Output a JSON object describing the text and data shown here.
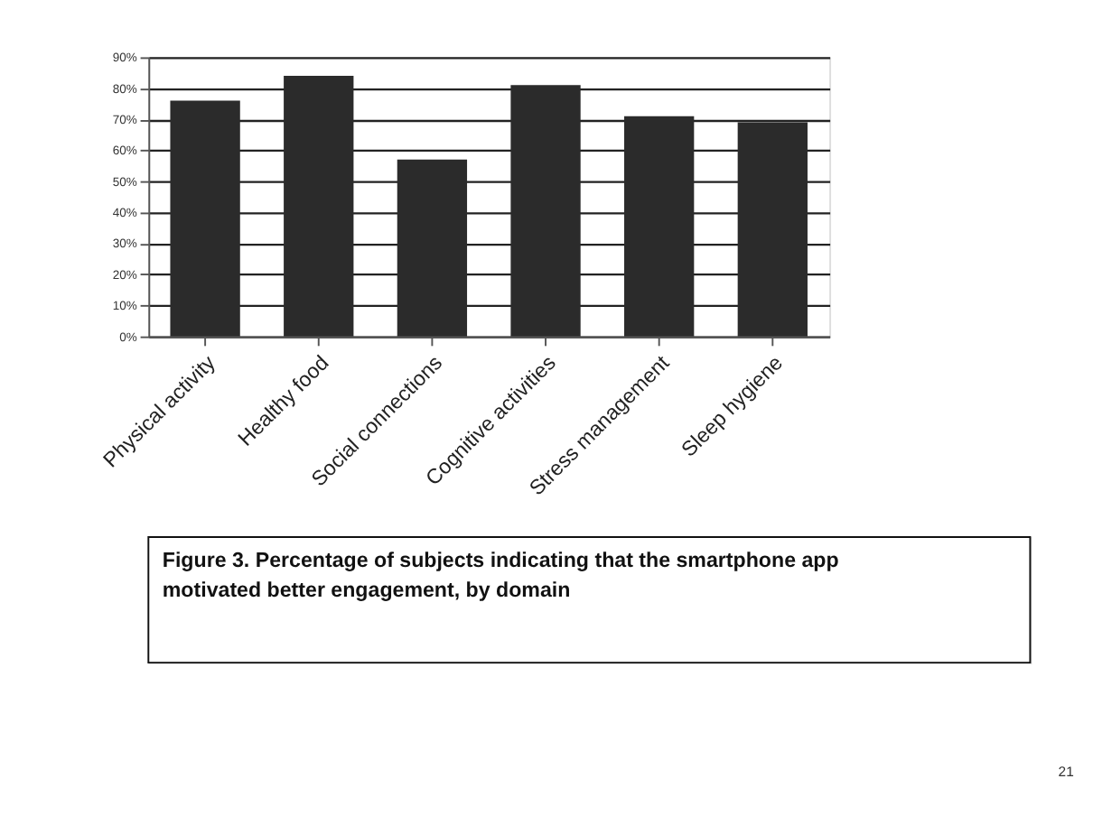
{
  "chart_data": {
    "type": "bar",
    "categories": [
      "Physical activity",
      "Healthy food",
      "Social connections",
      "Cognitive activities",
      "Stress management",
      "Sleep hygiene"
    ],
    "values": [
      76,
      84,
      57,
      81,
      71,
      69
    ],
    "color": "#2b2b2b",
    "ylim": [
      0,
      90
    ],
    "yticks": [
      {
        "value": 0,
        "label": "0%"
      },
      {
        "value": 10,
        "label": "10%"
      },
      {
        "value": 20,
        "label": "20%"
      },
      {
        "value": 30,
        "label": "30%"
      },
      {
        "value": 40,
        "label": "40%"
      },
      {
        "value": 50,
        "label": "50%"
      },
      {
        "value": 60,
        "label": "60%"
      },
      {
        "value": 70,
        "label": "70%"
      },
      {
        "value": 80,
        "label": "80%"
      },
      {
        "value": 90,
        "label": "90%"
      }
    ],
    "grid": "y",
    "annotations": [
      "Figure 3. Percentage of subjects indicating that the smartphone app motivated better engagement, by domain",
      "21"
    ]
  }
}
